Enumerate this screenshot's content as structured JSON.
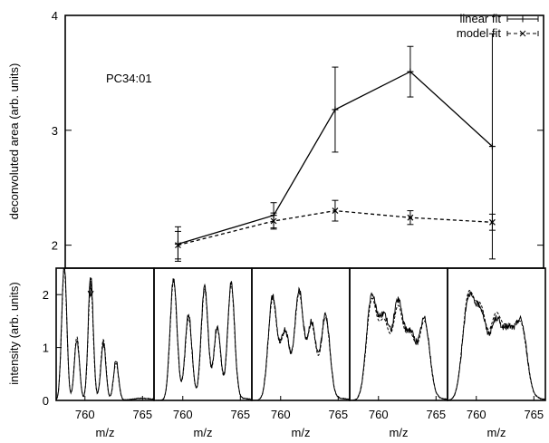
{
  "chart_data": [
    {
      "type": "line",
      "ylabel": "deconvoluted area (arb. units)",
      "xlabel": "",
      "ylim": [
        1.8,
        4.0
      ],
      "yticks": [
        2,
        3,
        4
      ],
      "grid": false,
      "legend_position": "top-right",
      "annotation": "PC34:01",
      "series": [
        {
          "name": "linear fit",
          "style": "solid",
          "marker": "plus",
          "color": "#000000",
          "x": [
            761.3,
            764.1,
            765.9,
            768.1,
            770.5
          ],
          "y": [
            2.01,
            2.26,
            3.18,
            3.51,
            2.86
          ],
          "err": [
            0.15,
            0.11,
            0.37,
            0.22,
            0.98
          ]
        },
        {
          "name": "model fit",
          "style": "dashed",
          "marker": "x",
          "color": "#000000",
          "x": [
            761.3,
            764.1,
            765.9,
            768.1,
            770.5
          ],
          "y": [
            2.0,
            2.21,
            2.3,
            2.24,
            2.2
          ],
          "err": [
            0.12,
            0.07,
            0.09,
            0.06,
            0.07
          ]
        }
      ]
    },
    {
      "type": "line",
      "ylabel": "intensity (arb. units)",
      "xlabel": "m/z",
      "ylim": [
        0,
        2.5
      ],
      "yticks": [
        0,
        1,
        2
      ],
      "panels": 5,
      "x_range": [
        757.5,
        766
      ],
      "xticks": [
        760,
        765
      ],
      "arrow_at": 760.5,
      "series_styles": [
        "solid",
        "dashed"
      ],
      "peak_sets": [
        {
          "centers": [
            758.2,
            759.3,
            760.5,
            761.6,
            762.7
          ],
          "heights_solid": [
            2.6,
            1.15,
            2.35,
            1.1,
            0.75
          ],
          "heights_dashed": [
            2.5,
            1.2,
            2.2,
            1.15,
            0.7
          ],
          "width": 0.22
        },
        {
          "centers": [
            759.2,
            760.5,
            761.9,
            763.0,
            764.2
          ],
          "heights_solid": [
            2.3,
            1.6,
            2.15,
            1.4,
            2.2
          ],
          "heights_dashed": [
            2.25,
            1.55,
            2.1,
            1.35,
            2.15
          ],
          "width": 0.3
        },
        {
          "centers": [
            759.3,
            760.4,
            761.6,
            762.7,
            763.9
          ],
          "heights_solid": [
            1.95,
            1.3,
            2.05,
            1.45,
            1.6
          ],
          "heights_dashed": [
            1.9,
            1.3,
            2.0,
            1.4,
            1.55
          ],
          "width": 0.38
        },
        {
          "centers": [
            759.4,
            760.5,
            761.7,
            762.8,
            764.0
          ],
          "heights_solid": [
            1.95,
            1.5,
            1.8,
            1.2,
            1.5
          ],
          "heights_dashed": [
            1.85,
            1.4,
            1.7,
            1.15,
            1.45
          ],
          "width": 0.45
        },
        {
          "centers": [
            759.3,
            760.4,
            761.7,
            762.8,
            763.9
          ],
          "heights_solid": [
            1.85,
            1.55,
            1.4,
            1.15,
            1.4
          ],
          "heights_dashed": [
            1.9,
            1.6,
            1.5,
            1.2,
            1.35
          ],
          "width": 0.5
        }
      ]
    }
  ]
}
